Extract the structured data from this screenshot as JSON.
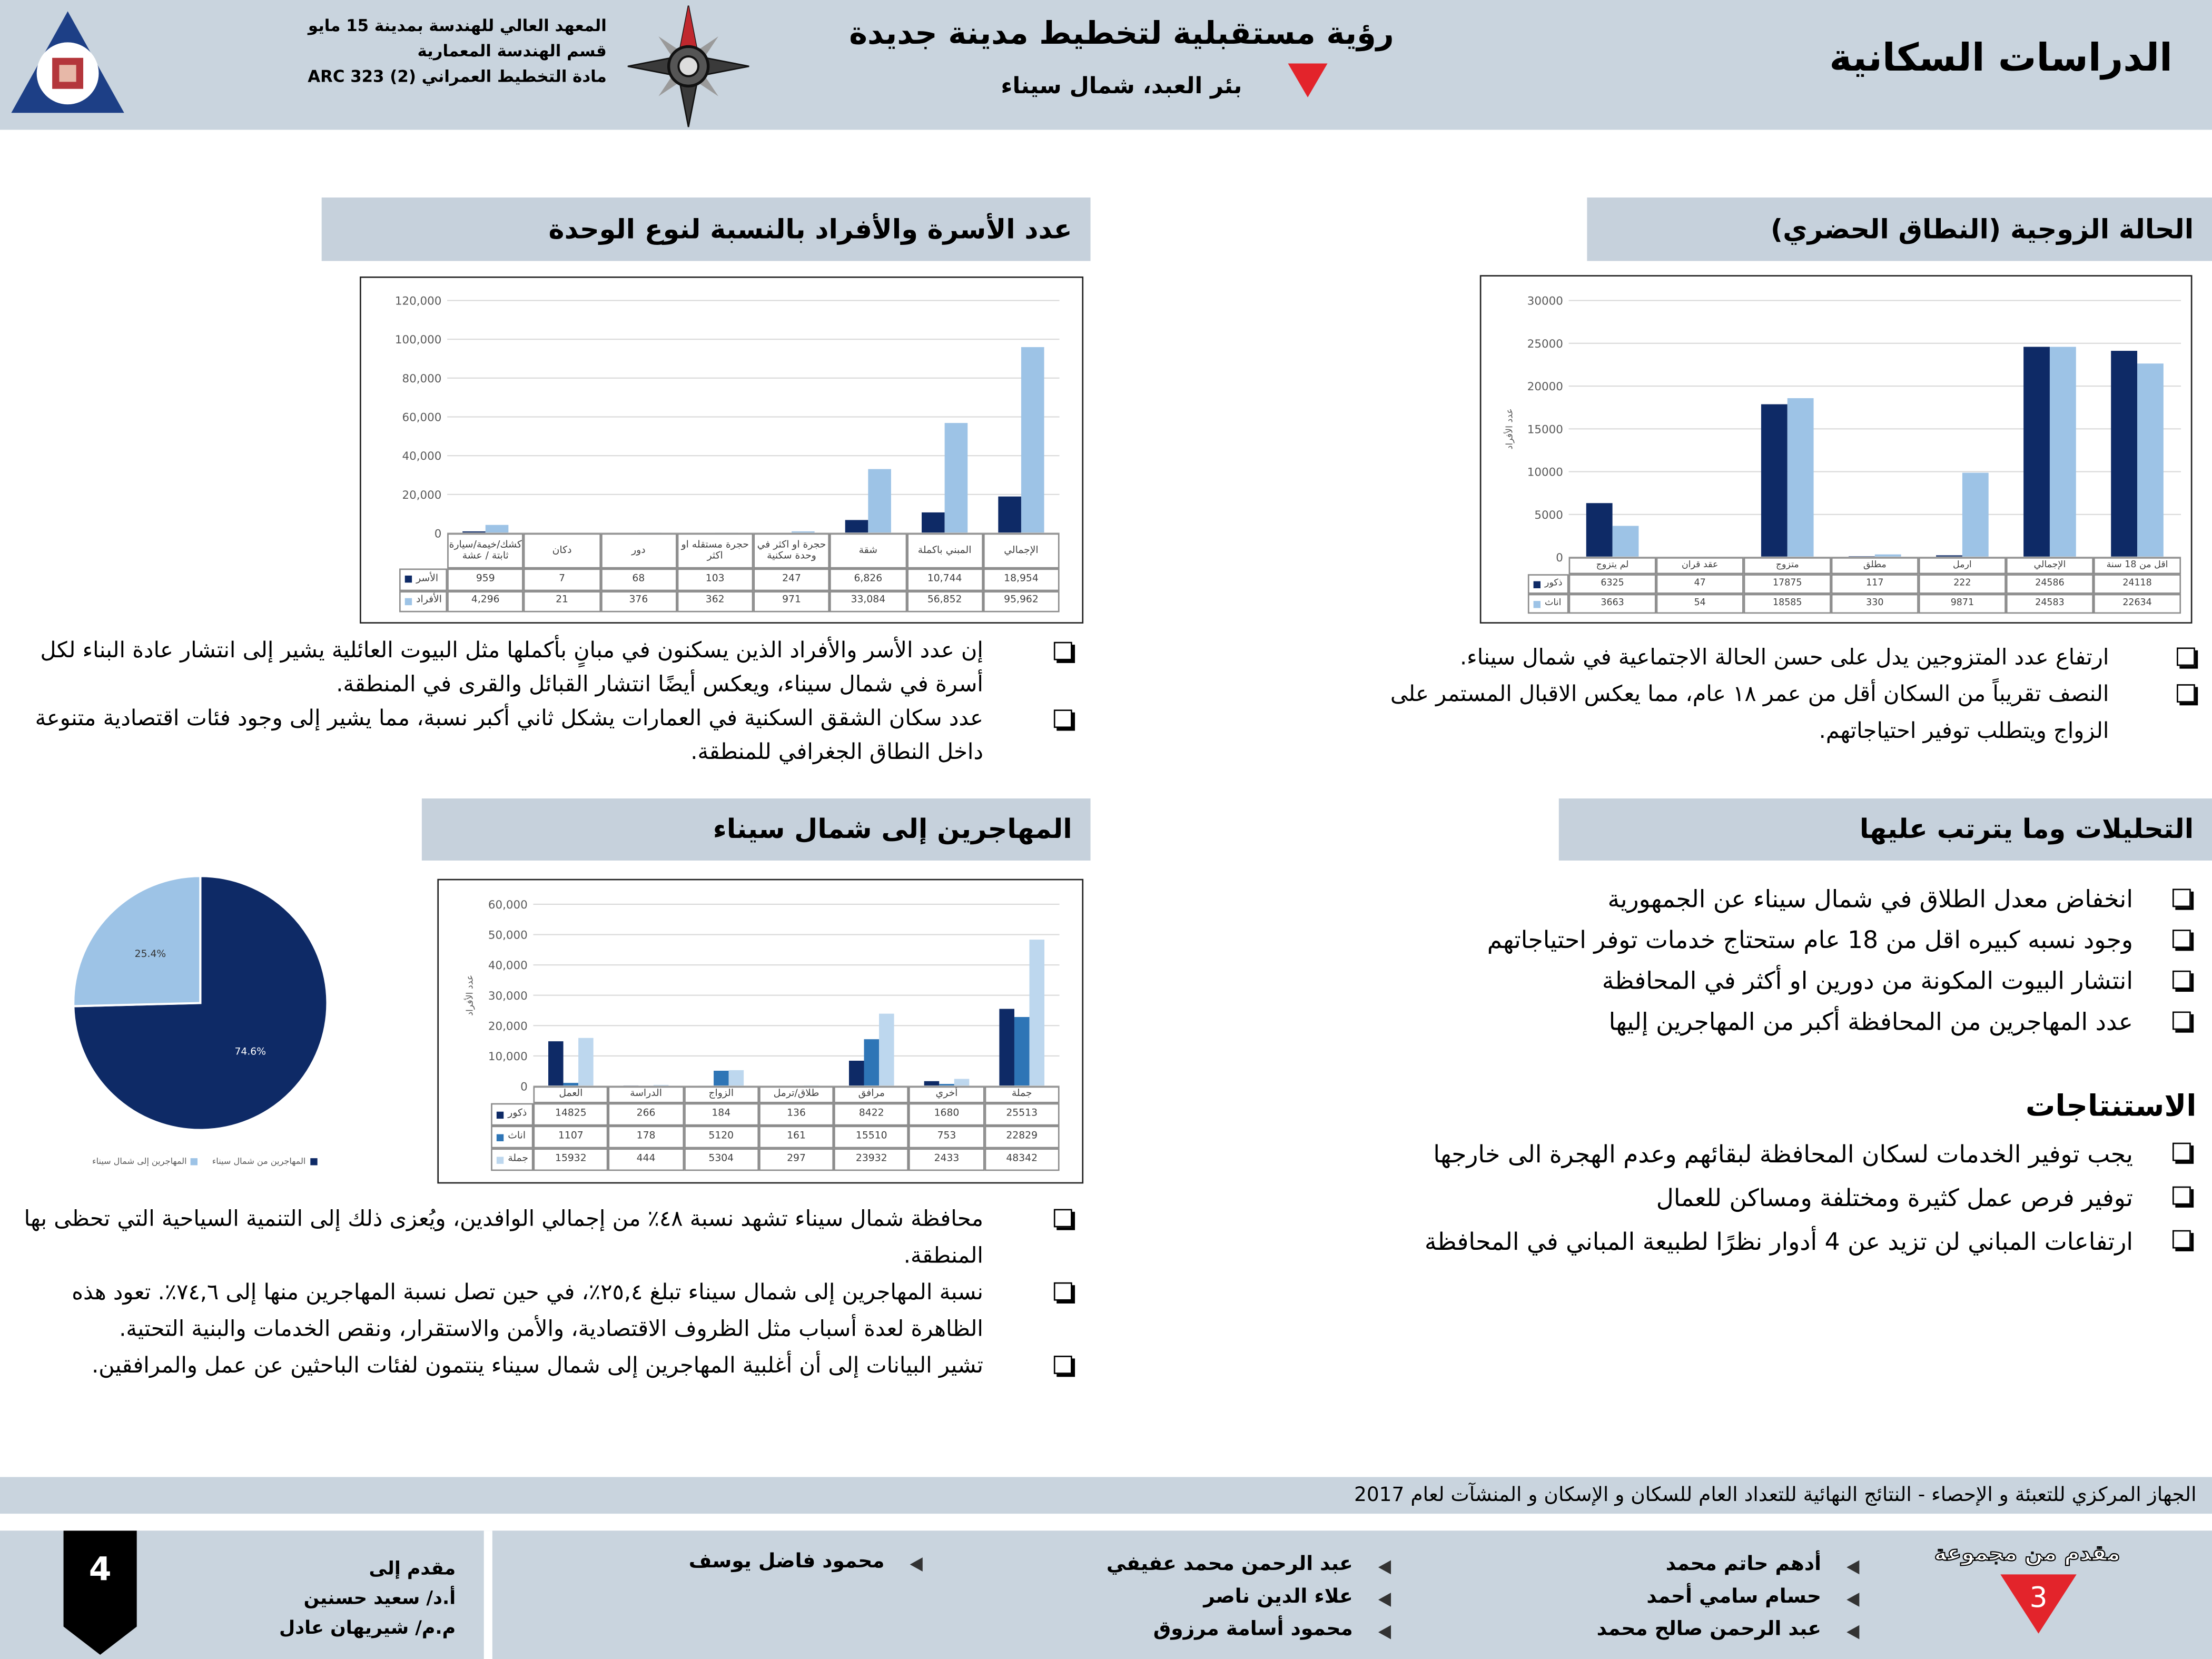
{
  "header": {
    "title": "الدراسات السكانية",
    "project_title": "رؤية مستقبلية لتخطيط مدينة جديدة",
    "project_subtitle": "بئر العبد، شمال سيناء",
    "institute_lines": [
      "المعهد العالي للهندسة بمدينة 15 مايو",
      "قسم الهندسة المعمارية",
      "مادة التخطيط العمراني (2)  ARC 323"
    ]
  },
  "sections": [
    {
      "heading": "الحالة الزوجية (النطاق الحضري)",
      "bullets": [
        "ارتفاع عدد المتزوجين يدل على حسن الحالة الاجتماعية في شمال سيناء.",
        "النصف تقريباً من السكان أقل من عمر ١٨ عام، مما يعكس الاقبال المستمر على الزواج ويتطلب توفير احتياجاتهم."
      ]
    },
    {
      "heading": "عدد الأسرة والأفراد بالنسبة لنوع الوحدة",
      "bullets": [
        "إن عدد الأسر والأفراد الذين يسكنون في مبانٍ بأكملها مثل البيوت العائلية يشير إلى انتشار عادة البناء لكل أسرة في شمال سيناء، ويعكس أيضًا انتشار القبائل والقرى في المنطقة.",
        "عدد سكان الشقق السكنية في العمارات يشكل ثاني أكبر نسبة، مما يشير إلى وجود فئات اقتصادية متنوعة داخل النطاق الجغرافي للمنطقة."
      ]
    },
    {
      "heading": "المهاجرين إلى شمال سيناء",
      "bullets": [
        "محافظة شمال سيناء تشهد نسبة ٤٨٪ من إجمالي الوافدين، ويُعزى ذلك إلى التنمية السياحية التي تحظى بها المنطقة.",
        "نسبة المهاجرين إلى شمال سيناء تبلغ ٢٥,٤٪، في حين تصل نسبة المهاجرين منها إلى ٧٤,٦٪. تعود هذه الظاهرة لعدة أسباب مثل الظروف الاقتصادية، والأمن والاستقرار، ونقص الخدمات والبنية التحتية.",
        "تشير البيانات إلى أن أغلبية المهاجرين إلى شمال سيناء ينتمون لفئات الباحثين عن عمل والمرافقين."
      ]
    },
    {
      "heading": "التحليلات وما يترتب عليها",
      "bullets": [
        "انخفاض معدل الطلاق في شمال سيناء عن الجمهورية",
        "وجود نسبه كبيره اقل من 18 عام ستحتاج خدمات توفر احتياجاتهم",
        "انتشار البيوت المكونة من دورين او أكثر في المحافظة",
        "عدد المهاجرين من المحافظة أكبر من المهاجرين إليها"
      ]
    },
    {
      "heading": "الاستنتاجات",
      "bullets": [
        "يجب توفير الخدمات لسكان المحافظة لبقائهم وعدم الهجرة الى خارجها",
        "توفير فرص عمل كثيرة ومختلفة ومساكن للعمال",
        "ارتفاعات المباني لن تزيد عن 4 أدوار نظرًا لطبيعة المباني في المحافظة"
      ]
    }
  ],
  "chart_data": [
    {
      "type": "bar",
      "y_label": "عدد الأفراد",
      "categories": [
        "لم يتزوج",
        "عقد قران",
        "متزوج",
        "مطلق",
        "ارمل",
        "الإجمالي",
        "اقل من 18 سنة"
      ],
      "series": [
        {
          "name": "ذكور",
          "color": "#0e2a66",
          "values": [
            6325,
            47,
            17875,
            117,
            222,
            24586,
            24118
          ]
        },
        {
          "name": "اناث",
          "color": "#9dc3e6",
          "values": [
            3663,
            54,
            18585,
            330,
            9871,
            24583,
            22634
          ]
        }
      ],
      "ylim": [
        0,
        30000
      ],
      "yticks": [
        0,
        5000,
        10000,
        15000,
        20000,
        25000,
        30000
      ],
      "grid": true
    },
    {
      "type": "bar",
      "categories": [
        "كشك/خيمة/سيارة ثابتة / عشة",
        "دكان",
        "دور",
        "حجرة مستقله او اكثر",
        "حجرة او اكثر في وحدة سكنية",
        "شقة",
        "المبني باكملة",
        "الإجمالي"
      ],
      "series": [
        {
          "name": "الأسر",
          "color": "#0e2a66",
          "values": [
            959,
            7,
            68,
            103,
            247,
            6826,
            10744,
            18954
          ],
          "value_labels": [
            "959",
            "7",
            "68",
            "103",
            "247",
            "6,826",
            "10,744",
            "18,954"
          ]
        },
        {
          "name": "الأفراد",
          "color": "#9dc3e6",
          "values": [
            4296,
            21,
            376,
            362,
            971,
            33084,
            56852,
            95962
          ],
          "value_labels": [
            "4,296",
            "21",
            "376",
            "362",
            "971",
            "33,084",
            "56,852",
            "95,962"
          ]
        }
      ],
      "ylim": [
        0,
        120000
      ],
      "yticks": [
        0,
        {
          "value": 20000,
          "label": "20,000"
        },
        {
          "value": 40000,
          "label": "40,000"
        },
        {
          "value": 60000,
          "label": "60,000"
        },
        {
          "value": 80000,
          "label": "80,000"
        },
        {
          "value": 100000,
          "label": "100,000"
        },
        {
          "value": 120000,
          "label": "120,000"
        }
      ],
      "grid": true
    },
    {
      "type": "bar",
      "y_label": "عدد الأفراد",
      "categories": [
        "العمل",
        "الدراسة",
        "الزواج",
        "طلاق/ترمل",
        "مرافق",
        "أخري",
        "جملة"
      ],
      "series": [
        {
          "name": "ذكور",
          "color": "#0e2a66",
          "values": [
            14825,
            266,
            184,
            136,
            8422,
            1680,
            25513
          ]
        },
        {
          "name": "اناث",
          "color": "#2e75b6",
          "values": [
            1107,
            178,
            5120,
            161,
            15510,
            753,
            22829
          ]
        },
        {
          "name": "جملة",
          "color": "#bdd7ee",
          "values": [
            15932,
            444,
            5304,
            297,
            23932,
            2433,
            48342
          ]
        }
      ],
      "ylim": [
        0,
        60000
      ],
      "yticks": [
        0,
        {
          "value": 10000,
          "label": "10,000"
        },
        {
          "value": 20000,
          "label": "20,000"
        },
        {
          "value": 30000,
          "label": "30,000"
        },
        {
          "value": 40000,
          "label": "40,000"
        },
        {
          "value": 50000,
          "label": "50,000"
        },
        {
          "value": 60000,
          "label": "60,000"
        }
      ],
      "grid": true
    },
    {
      "type": "pie",
      "labels": [
        "المهاجرين من شمال سيناء",
        "المهاجرين إلى شمال سيناء"
      ],
      "values": [
        74.6,
        25.4
      ],
      "value_labels": [
        "74.6%",
        "25.4%"
      ],
      "colors": [
        "#0e2a66",
        "#9dc3e6"
      ]
    }
  ],
  "source": "الجهاز المركزي للتعبئة و الإحصاء - النتائج النهائية للتعداد العام للسكان و الإسكان و المنشآت لعام 2017",
  "footer": {
    "group_label": "مقدم من مجموعة",
    "group_number": 3,
    "students": [
      "أدهم حاتم محمد",
      "حسام سامي أحمد",
      "عبد الرحمن صالح محمد",
      "عبد الرحمن محمد عفيفي",
      "علاء الدين ناصر",
      "محمود أسامة مرزوق",
      "محمود فاضل يوسف"
    ],
    "submitted_to_label": "مقدم إلى",
    "supervisors": [
      "أ.د/ سعيد حسنين",
      "م.م/ شيريهان عادل"
    ],
    "page_number": 4
  }
}
